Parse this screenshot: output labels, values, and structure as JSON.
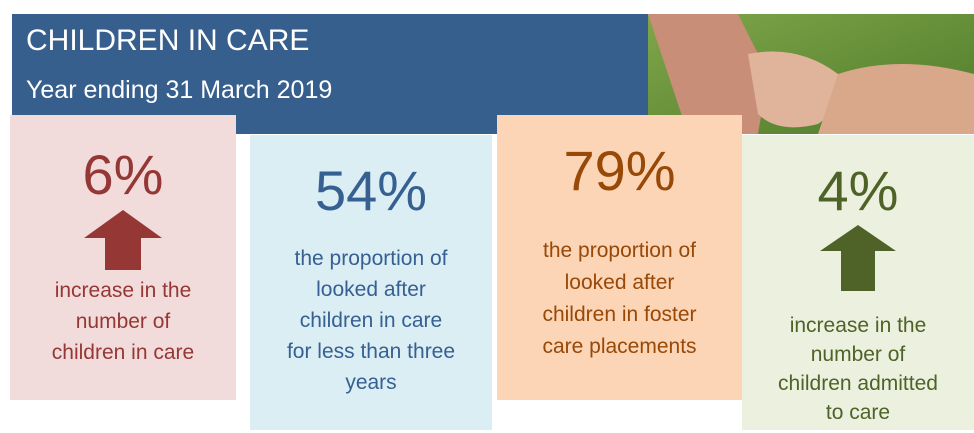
{
  "header": {
    "title": "CHILDREN IN CARE",
    "subtitle": "Year ending 31 March 2019"
  },
  "tiles": [
    {
      "stat": "6%",
      "lines": [
        "increase in the",
        "number of",
        "children in care"
      ]
    },
    {
      "stat": "54%",
      "lines": [
        "the proportion of",
        "looked after",
        "children in care",
        "for less than three",
        "years"
      ]
    },
    {
      "stat": "79%",
      "lines": [
        "the proportion of",
        "looked after",
        "children in foster",
        "care placements"
      ]
    },
    {
      "stat": "4%",
      "lines": [
        "increase in the",
        "number of",
        "children admitted",
        "to care"
      ]
    }
  ]
}
